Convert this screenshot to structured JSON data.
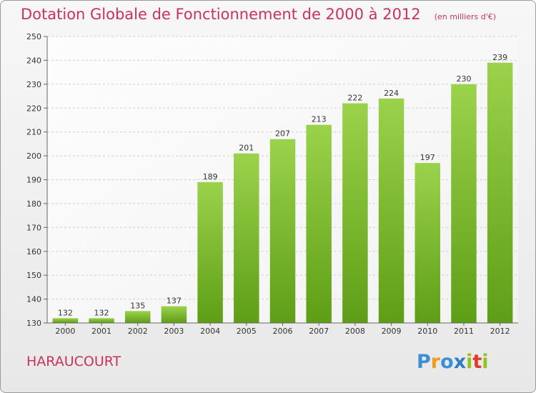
{
  "title": "Dotation Globale de Fonctionnement de 2000 à 2012",
  "subtitle": "(en milliers d'€)",
  "commune": "HARAUCOURT",
  "logo": {
    "letters": [
      "P",
      "r",
      "o",
      "x",
      "i",
      "t",
      "i"
    ],
    "colors": [
      "#3b8fd4",
      "#f39c19",
      "#3b8fd4",
      "#2f7ec4",
      "#95c11f",
      "#e5372b",
      "#95c11f"
    ]
  },
  "colors": {
    "bar_top": "#9bd24c",
    "bar_bottom": "#5e9e16",
    "accent": "#c8325d"
  },
  "chart_data": {
    "type": "bar",
    "categories": [
      "2000",
      "2001",
      "2002",
      "2003",
      "2004",
      "2005",
      "2006",
      "2007",
      "2008",
      "2009",
      "2010",
      "2011",
      "2012"
    ],
    "values": [
      132,
      132,
      135,
      137,
      189,
      201,
      207,
      213,
      222,
      224,
      197,
      230,
      239
    ],
    "ylim": [
      130,
      250
    ],
    "yticks": [
      130,
      140,
      150,
      160,
      170,
      180,
      190,
      200,
      210,
      220,
      230,
      240,
      250
    ],
    "grid": true,
    "data_labels": true
  }
}
